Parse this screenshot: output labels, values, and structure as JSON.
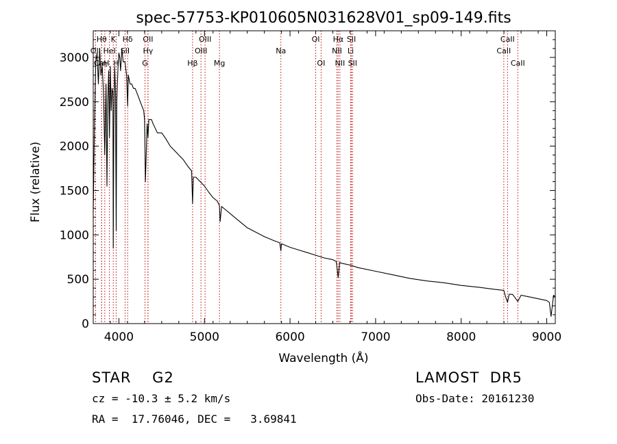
{
  "chart_data": {
    "type": "line",
    "title": "spec-57753-KP010605N031628V01_sp09-149.fits",
    "xlabel": "Wavelength (Å)",
    "ylabel": "Flux (relative)",
    "xlim": [
      3700,
      9100
    ],
    "ylim": [
      0,
      3300
    ],
    "x_ticks": [
      4000,
      5000,
      6000,
      7000,
      8000,
      9000
    ],
    "y_ticks": [
      0,
      500,
      1000,
      1500,
      2000,
      2500,
      3000
    ],
    "grid": false,
    "series": [
      {
        "color": "#000000",
        "x": [
          3700,
          3715,
          3730,
          3745,
          3760,
          3775,
          3790,
          3805,
          3820,
          3835,
          3850,
          3860,
          3870,
          3880,
          3890,
          3900,
          3910,
          3920,
          3930,
          3934,
          3940,
          3950,
          3960,
          3968,
          3975,
          3990,
          4000,
          4010,
          4020,
          4035,
          4050,
          4070,
          4090,
          4102,
          4110,
          4130,
          4150,
          4170,
          4190,
          4210,
          4230,
          4250,
          4270,
          4290,
          4300,
          4310,
          4330,
          4340,
          4350,
          4380,
          4400,
          4450,
          4500,
          4550,
          4600,
          4650,
          4700,
          4750,
          4800,
          4850,
          4861,
          4870,
          4900,
          4950,
          5000,
          5050,
          5100,
          5150,
          5175,
          5183,
          5200,
          5250,
          5300,
          5350,
          5400,
          5500,
          5600,
          5700,
          5800,
          5880,
          5893,
          5900,
          6000,
          6100,
          6200,
          6300,
          6400,
          6500,
          6540,
          6563,
          6580,
          6600,
          6700,
          6800,
          7000,
          7200,
          7400,
          7600,
          7800,
          8000,
          8200,
          8400,
          8498,
          8520,
          8542,
          8560,
          8600,
          8662,
          8700,
          8800,
          8900,
          9000,
          9030,
          9050,
          9080,
          9100
        ],
        "y": [
          1250,
          2300,
          2950,
          3050,
          2700,
          3100,
          2800,
          2900,
          2600,
          1900,
          2700,
          1550,
          2500,
          2850,
          2100,
          2900,
          2400,
          2650,
          2600,
          850,
          2200,
          2900,
          2600,
          1050,
          2500,
          2900,
          3050,
          3000,
          2850,
          3100,
          2950,
          2950,
          2800,
          2450,
          2800,
          2700,
          2700,
          2650,
          2650,
          2600,
          2550,
          2500,
          2450,
          2400,
          2300,
          1600,
          2250,
          2100,
          2300,
          2300,
          2250,
          2150,
          2150,
          2080,
          2000,
          1950,
          1900,
          1850,
          1780,
          1720,
          1350,
          1650,
          1650,
          1600,
          1550,
          1480,
          1420,
          1380,
          1330,
          1150,
          1320,
          1280,
          1240,
          1200,
          1160,
          1080,
          1030,
          980,
          940,
          910,
          820,
          900,
          860,
          830,
          800,
          770,
          740,
          720,
          700,
          520,
          690,
          680,
          660,
          630,
          590,
          550,
          510,
          480,
          460,
          430,
          410,
          385,
          375,
          300,
          240,
          330,
          330,
          250,
          320,
          300,
          280,
          260,
          240,
          80,
          320,
          300
        ]
      }
    ],
    "lines_top": [
      {
        "label": "Hθ",
        "x": 3798
      },
      {
        "label": "K",
        "x": 3934
      },
      {
        "label": "Hδ",
        "x": 4102
      },
      {
        "label": "OII",
        "x": 4340
      },
      {
        "label": "OIII",
        "x": 5007
      },
      {
        "label": "OI",
        "x": 6300
      },
      {
        "label": "Hα",
        "x": 6563
      },
      {
        "label": "SII",
        "x": 6717
      },
      {
        "label": "CaII",
        "x": 8542
      }
    ],
    "lines_mid": [
      {
        "label": "OII",
        "x": 3727
      },
      {
        "label": "HeI",
        "x": 3889
      },
      {
        "label": "SII",
        "x": 4072
      },
      {
        "label": "Hγ",
        "x": 4340
      },
      {
        "label": "OIII",
        "x": 4959
      },
      {
        "label": "Na",
        "x": 5893
      },
      {
        "label": "NII",
        "x": 6548
      },
      {
        "label": "Li",
        "x": 6708
      },
      {
        "label": "CaII",
        "x": 8498
      }
    ],
    "lines_low": [
      {
        "label": "CaH",
        "x": 3797
      },
      {
        "label": "η",
        "x": 3835
      },
      {
        "label": "H",
        "x": 3968
      },
      {
        "label": "G",
        "x": 4305
      },
      {
        "label": "Hβ",
        "x": 4861
      },
      {
        "label": "Mg",
        "x": 5175
      },
      {
        "label": "OI",
        "x": 6363
      },
      {
        "label": "NII",
        "x": 6583
      },
      {
        "label": "SII",
        "x": 6731
      },
      {
        "label": "CaII",
        "x": 8662
      }
    ]
  },
  "info": {
    "object_class": "STAR    G2",
    "survey": "LAMOST  DR5",
    "cz": "cz = -10.3 ± 5.2 km/s",
    "obs_date": "Obs-Date: 20161230",
    "coords": "RA =  17.76046, DEC =   3.69841"
  }
}
